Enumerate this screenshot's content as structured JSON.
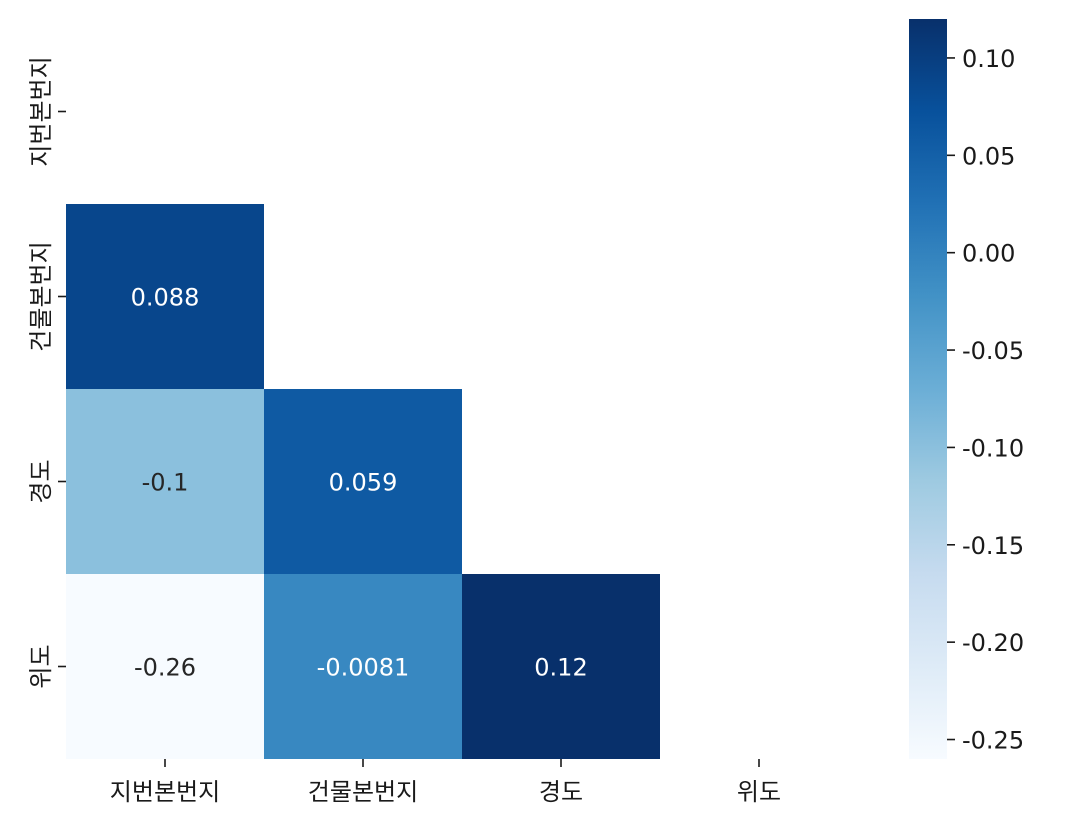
{
  "chart_data": {
    "type": "heatmap",
    "title": "",
    "xlabel": "",
    "ylabel": "",
    "x_labels": [
      "지번본번지",
      "건물본번지",
      "경도",
      "위도"
    ],
    "y_labels": [
      "지번본번지",
      "건물본번지",
      "경도",
      "위도"
    ],
    "mask": "upper-triangle-including-diagonal",
    "values": [
      [
        null,
        null,
        null,
        null
      ],
      [
        0.088,
        null,
        null,
        null
      ],
      [
        -0.1,
        0.059,
        null,
        null
      ],
      [
        -0.26,
        -0.0081,
        0.12,
        null
      ]
    ],
    "cell_labels": [
      [
        "",
        "",
        "",
        ""
      ],
      [
        "0.088",
        "",
        "",
        ""
      ],
      [
        "-0.1",
        "0.059",
        "",
        ""
      ],
      [
        "-0.26",
        "-0.0081",
        "0.12",
        ""
      ]
    ],
    "colormap": "Blues",
    "vmin": -0.26,
    "vmax": 0.12,
    "colorbar": {
      "placement": "right",
      "ticks": [
        0.1,
        0.05,
        0.0,
        -0.05,
        -0.1,
        -0.15,
        -0.2,
        -0.25
      ],
      "tick_labels": [
        "0.10",
        "0.05",
        "0.00",
        "-0.05",
        "-0.10",
        "-0.15",
        "-0.20",
        "-0.25"
      ]
    }
  }
}
